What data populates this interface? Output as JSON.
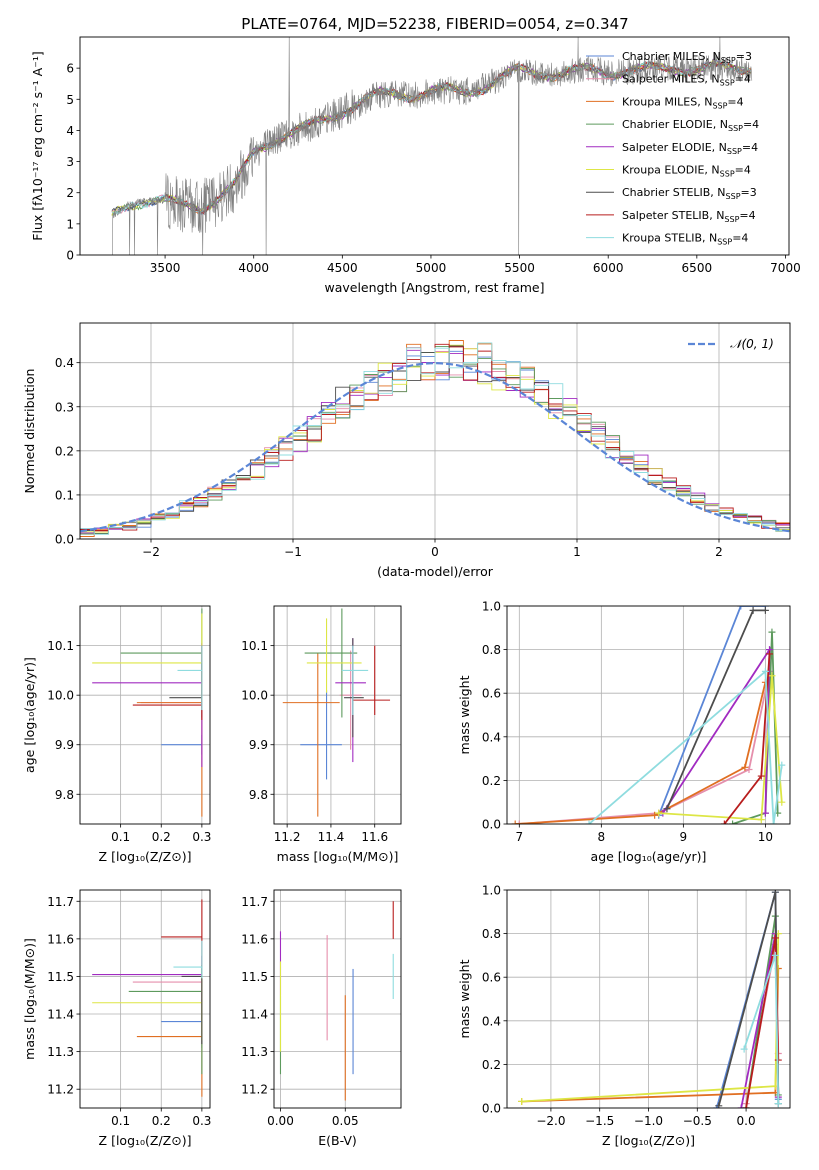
{
  "figure_title": "PLATE=0764, MJD=52238, FIBERID=0054, z=0.347",
  "colors": {
    "Chabrier MILES": "#5b86d6",
    "Salpeter MILES": "#e58fac",
    "Kroupa MILES": "#e06f22",
    "Chabrier ELODIE": "#5d9a5d",
    "Salpeter ELODIE": "#a12bc1",
    "Kroupa ELODIE": "#dde645",
    "Chabrier STELIB": "#4d4d4d",
    "Salpeter STELIB": "#b81d1d",
    "Kroupa STELIB": "#8fdcdf",
    "data": "#808080",
    "normal": "#5b86d6"
  },
  "chart_data": [
    {
      "id": "spectrum",
      "type": "line",
      "xlabel": "wavelength [Angstrom, rest frame]",
      "ylabel": "Flux [fλ10⁻¹⁷ erg cm⁻² s⁻¹ A⁻¹]",
      "xlim": [
        3020,
        7020
      ],
      "ylim": [
        0,
        7
      ],
      "xticks": [
        "3500",
        "4000",
        "4500",
        "5000",
        "5500",
        "6000",
        "6500",
        "7000"
      ],
      "yticks": [
        "0",
        "1",
        "2",
        "3",
        "4",
        "5",
        "6"
      ],
      "grid": false,
      "legend": "upper right",
      "legend_entries": [
        {
          "series": "Chabrier MILES",
          "text": "Chabrier MILES, N",
          "sub": "SSP",
          "suffix": "=3"
        },
        {
          "series": "Salpeter MILES",
          "text": "Salpeter MILES, N",
          "sub": "SSP",
          "suffix": "=4"
        },
        {
          "series": "Kroupa MILES",
          "text": "Kroupa MILES, N",
          "sub": "SSP",
          "suffix": "=4"
        },
        {
          "series": "Chabrier ELODIE",
          "text": "Chabrier ELODIE, N",
          "sub": "SSP",
          "suffix": "=4"
        },
        {
          "series": "Salpeter ELODIE",
          "text": "Salpeter ELODIE, N",
          "sub": "SSP",
          "suffix": "=4"
        },
        {
          "series": "Kroupa ELODIE",
          "text": "Kroupa ELODIE, N",
          "sub": "SSP",
          "suffix": "=4"
        },
        {
          "series": "Chabrier STELIB",
          "text": "Chabrier STELIB, N",
          "sub": "SSP",
          "suffix": "=3"
        },
        {
          "series": "Salpeter STELIB",
          "text": "Salpeter STELIB, N",
          "sub": "SSP",
          "suffix": "=4"
        },
        {
          "series": "Kroupa STELIB",
          "text": "Kroupa STELIB, N",
          "sub": "SSP",
          "suffix": "=4"
        }
      ],
      "continuum": [
        [
          3200,
          1.25
        ],
        [
          3300,
          1.65
        ],
        [
          3400,
          1.75
        ],
        [
          3500,
          1.75
        ],
        [
          3600,
          1.6
        ],
        [
          3700,
          1.5
        ],
        [
          3800,
          1.85
        ],
        [
          3900,
          2.3
        ],
        [
          4000,
          3.3
        ],
        [
          4100,
          3.65
        ],
        [
          4200,
          3.9
        ],
        [
          4300,
          4.1
        ],
        [
          4400,
          4.35
        ],
        [
          4500,
          4.6
        ],
        [
          4600,
          4.9
        ],
        [
          4700,
          5.15
        ],
        [
          4800,
          5.2
        ],
        [
          4900,
          5.1
        ],
        [
          5000,
          5.25
        ],
        [
          5100,
          5.3
        ],
        [
          5200,
          5.25
        ],
        [
          5300,
          5.4
        ],
        [
          5400,
          5.7
        ],
        [
          5500,
          5.95
        ],
        [
          5600,
          5.85
        ],
        [
          5700,
          5.8
        ],
        [
          5800,
          5.9
        ],
        [
          5900,
          5.95
        ],
        [
          6000,
          5.85
        ],
        [
          6100,
          5.9
        ],
        [
          6200,
          5.95
        ],
        [
          6300,
          6.0
        ],
        [
          6400,
          6.0
        ],
        [
          6500,
          5.95
        ],
        [
          6600,
          6.05
        ],
        [
          6700,
          6.0
        ],
        [
          6800,
          6.0
        ]
      ]
    },
    {
      "id": "residuals",
      "type": "histogram",
      "xlabel": "(data-model)/error",
      "ylabel": "Normed distribution",
      "xlim": [
        -2.5,
        2.5
      ],
      "ylim": [
        0,
        0.49
      ],
      "xticks": [
        "−2",
        "−1",
        "0",
        "1",
        "2"
      ],
      "yticks": [
        "0.0",
        "0.1",
        "0.2",
        "0.3",
        "0.4"
      ],
      "grid": true,
      "legend": "upper right",
      "legend_label": "𝒩(0, 1)",
      "bin_width": 0.1
    },
    {
      "id": "age-vs-Z",
      "type": "errorbar",
      "xlabel": "Z [log₁₀(Z/Z⊙)]",
      "ylabel": "age  [log₁₀(age/yr)]",
      "xlim": [
        0.0,
        0.32
      ],
      "ylim": [
        9.74,
        10.18
      ],
      "xticks": [
        "0.1",
        "0.2",
        "0.3"
      ],
      "yticks": [
        "9.8",
        "9.9",
        "10.0",
        "10.1"
      ],
      "grid": true,
      "points": [
        {
          "s": "Chabrier MILES",
          "x": 0.3,
          "xe": [
            0.1,
            0.0
          ],
          "y": 9.9,
          "ye": [
            0.02,
            0.02
          ]
        },
        {
          "s": "Salpeter MILES",
          "x": 0.3,
          "xe": [
            0.15,
            0.0
          ],
          "y": 9.985,
          "ye": [
            0.01,
            0.01
          ]
        },
        {
          "s": "Kroupa MILES",
          "x": 0.3,
          "xe": [
            0.16,
            0.0
          ],
          "y": 9.985,
          "ye": [
            0.23,
            0.1
          ]
        },
        {
          "s": "Chabrier ELODIE",
          "x": 0.3,
          "xe": [
            0.2,
            0.0
          ],
          "y": 10.085,
          "ye": [
            0.13,
            0.09
          ]
        },
        {
          "s": "Salpeter ELODIE",
          "x": 0.3,
          "xe": [
            0.27,
            0.0
          ],
          "y": 10.025,
          "ye": [
            0.17,
            0.08
          ]
        },
        {
          "s": "Kroupa ELODIE",
          "x": 0.3,
          "xe": [
            0.27,
            0.0
          ],
          "y": 10.065,
          "ye": [
            0.08,
            0.1
          ]
        },
        {
          "s": "Chabrier STELIB",
          "x": 0.3,
          "xe": [
            0.08,
            0.0
          ],
          "y": 9.995,
          "ye": [
            0.02,
            0.07
          ]
        },
        {
          "s": "Salpeter STELIB",
          "x": 0.3,
          "xe": [
            0.17,
            0.0
          ],
          "y": 9.98,
          "ye": [
            0.03,
            0.12
          ]
        },
        {
          "s": "Kroupa STELIB",
          "x": 0.3,
          "xe": [
            0.06,
            0.0
          ],
          "y": 10.05,
          "ye": [
            0.08,
            0.05
          ]
        }
      ]
    },
    {
      "id": "age-vs-mass",
      "type": "errorbar",
      "xlabel": "mass [log₁₀(M/M⊙)]",
      "ylabel": "",
      "xlim": [
        11.14,
        11.72
      ],
      "ylim": [
        9.74,
        10.18
      ],
      "xticks": [
        "11.2",
        "11.4",
        "11.6"
      ],
      "yticks": [
        "9.8",
        "9.9",
        "10.0",
        "10.1"
      ],
      "grid": true,
      "points": [
        {
          "s": "Chabrier MILES",
          "x": 11.38,
          "xe": [
            0.12,
            0.07
          ],
          "y": 9.9,
          "ye": [
            0.07,
            0.11
          ]
        },
        {
          "s": "Salpeter MILES",
          "x": 11.49,
          "xe": [
            0.05,
            0.05
          ],
          "y": 10.0,
          "ye": [
            0.11,
            0.09
          ]
        },
        {
          "s": "Kroupa MILES",
          "x": 11.34,
          "xe": [
            0.16,
            0.1
          ],
          "y": 9.985,
          "ye": [
            0.23,
            0.1
          ]
        },
        {
          "s": "Chabrier ELODIE",
          "x": 11.45,
          "xe": [
            0.17,
            0.07
          ],
          "y": 10.085,
          "ye": [
            0.13,
            0.09
          ]
        },
        {
          "s": "Salpeter ELODIE",
          "x": 11.5,
          "xe": [
            0.08,
            0.06
          ],
          "y": 10.025,
          "ye": [
            0.16,
            0.09
          ]
        },
        {
          "s": "Kroupa ELODIE",
          "x": 11.38,
          "xe": [
            0.09,
            0.16
          ],
          "y": 10.065,
          "ye": [
            0.06,
            0.09
          ]
        },
        {
          "s": "Chabrier STELIB",
          "x": 11.5,
          "xe": [
            0.04,
            0.05
          ],
          "y": 9.995,
          "ye": [
            0.08,
            0.12
          ]
        },
        {
          "s": "Salpeter STELIB",
          "x": 11.6,
          "xe": [
            0.1,
            0.07
          ],
          "y": 9.99,
          "ye": [
            0.03,
            0.11
          ]
        },
        {
          "s": "Kroupa STELIB",
          "x": 11.5,
          "xe": [
            0.05,
            0.07
          ],
          "y": 10.05,
          "ye": [
            0.09,
            0.05
          ]
        }
      ]
    },
    {
      "id": "weight-vs-age",
      "type": "line",
      "xlabel": "age  [log₁₀(age/yr)]",
      "ylabel": "mass weight",
      "xlim": [
        6.85,
        10.3
      ],
      "ylim": [
        0,
        1
      ],
      "xticks": [
        "7",
        "8",
        "9",
        "10"
      ],
      "yticks": [
        "0.0",
        "0.2",
        "0.4",
        "0.6",
        "0.8",
        "1.0"
      ],
      "grid": true,
      "series": [
        {
          "s": "Chabrier MILES",
          "x": [
            8.7,
            9.7,
            10.0
          ],
          "y": [
            0.04,
            1.0,
            1.0
          ]
        },
        {
          "s": "Salpeter MILES",
          "x": [
            7.0,
            8.7,
            9.8,
            10.05
          ],
          "y": [
            0.0,
            0.05,
            0.25,
            0.7
          ]
        },
        {
          "s": "Kroupa MILES",
          "x": [
            6.95,
            8.65,
            9.75,
            10.0
          ],
          "y": [
            0.0,
            0.04,
            0.26,
            0.65
          ]
        },
        {
          "s": "Chabrier ELODIE",
          "x": [
            9.6,
            10.0,
            10.08,
            10.15
          ],
          "y": [
            0.0,
            0.05,
            0.88,
            0.05
          ]
        },
        {
          "s": "Salpeter ELODIE",
          "x": [
            8.75,
            10.05,
            10.0
          ],
          "y": [
            0.05,
            0.8,
            0.05
          ]
        },
        {
          "s": "Kroupa ELODIE",
          "x": [
            8.7,
            9.95,
            10.08,
            10.2
          ],
          "y": [
            0.05,
            0.02,
            0.68,
            0.1
          ]
        },
        {
          "s": "Chabrier STELIB",
          "x": [
            8.8,
            9.85,
            10.0
          ],
          "y": [
            0.07,
            0.98,
            0.98
          ]
        },
        {
          "s": "Salpeter STELIB",
          "x": [
            9.5,
            9.95,
            10.05
          ],
          "y": [
            0.0,
            0.22,
            0.78
          ]
        },
        {
          "s": "Kroupa STELIB",
          "x": [
            7.85,
            10.0,
            10.1,
            10.2
          ],
          "y": [
            0.0,
            0.7,
            0.0,
            0.27
          ]
        }
      ]
    },
    {
      "id": "mass-vs-Z",
      "type": "errorbar",
      "xlabel": "Z [log₁₀(Z/Z⊙)]",
      "ylabel": "mass [log₁₀(M/M⊙)]",
      "xlim": [
        0.0,
        0.32
      ],
      "ylim": [
        11.15,
        11.73
      ],
      "xticks": [
        "0.1",
        "0.2",
        "0.3"
      ],
      "yticks": [
        "11.2",
        "11.3",
        "11.4",
        "11.5",
        "11.6",
        "11.7"
      ],
      "grid": true,
      "points": [
        {
          "s": "Chabrier MILES",
          "x": 0.3,
          "xe": [
            0.1,
            0.0
          ],
          "y": 11.38,
          "ye": [
            0.07,
            0.08
          ]
        },
        {
          "s": "Salpeter MILES",
          "x": 0.3,
          "xe": [
            0.17,
            0.0
          ],
          "y": 11.485,
          "ye": [
            0.04,
            0.04
          ]
        },
        {
          "s": "Kroupa MILES",
          "x": 0.3,
          "xe": [
            0.16,
            0.0
          ],
          "y": 11.34,
          "ye": [
            0.16,
            0.1
          ]
        },
        {
          "s": "Chabrier ELODIE",
          "x": 0.3,
          "xe": [
            0.18,
            0.0
          ],
          "y": 11.46,
          "ye": [
            0.22,
            0.06
          ]
        },
        {
          "s": "Salpeter ELODIE",
          "x": 0.3,
          "xe": [
            0.27,
            0.0
          ],
          "y": 11.505,
          "ye": [
            0.08,
            0.05
          ]
        },
        {
          "s": "Kroupa ELODIE",
          "x": 0.3,
          "xe": [
            0.27,
            0.0
          ],
          "y": 11.43,
          "ye": [
            0.1,
            0.1
          ]
        },
        {
          "s": "Chabrier STELIB",
          "x": 0.3,
          "xe": [
            0.05,
            0.0
          ],
          "y": 11.5,
          "ye": [
            0.18,
            0.03
          ]
        },
        {
          "s": "Salpeter STELIB",
          "x": 0.3,
          "xe": [
            0.1,
            0.0
          ],
          "y": 11.605,
          "ye": [
            0.08,
            0.1
          ]
        },
        {
          "s": "Kroupa STELIB",
          "x": 0.3,
          "xe": [
            0.07,
            0.0
          ],
          "y": 11.525,
          "ye": [
            0.03,
            0.07
          ]
        }
      ]
    },
    {
      "id": "mass-vs-ebv",
      "type": "errorbar",
      "xlabel": "E(B-V)",
      "ylabel": "",
      "xlim": [
        -0.005,
        0.093
      ],
      "ylim": [
        11.15,
        11.73
      ],
      "xticks": [
        "0.00",
        "0.05"
      ],
      "yticks": [
        "11.2",
        "11.3",
        "11.4",
        "11.5",
        "11.6",
        "11.7"
      ],
      "grid": true,
      "points": [
        {
          "s": "Chabrier MILES",
          "x": 0.056,
          "xe": [
            0,
            0
          ],
          "y": 11.38,
          "ye": [
            0.14,
            0.14
          ]
        },
        {
          "s": "Salpeter MILES",
          "x": 0.036,
          "xe": [
            0,
            0
          ],
          "y": 11.47,
          "ye": [
            0.14,
            0.14
          ]
        },
        {
          "s": "Kroupa MILES",
          "x": 0.05,
          "xe": [
            0,
            0
          ],
          "y": 11.31,
          "ye": [
            0.14,
            0.14
          ]
        },
        {
          "s": "Chabrier ELODIE",
          "x": 0.0,
          "xe": [
            0,
            0
          ],
          "y": 11.35,
          "ye": [
            0.11,
            0.1
          ]
        },
        {
          "s": "Salpeter ELODIE",
          "x": 0.0,
          "xe": [
            0,
            0
          ],
          "y": 11.51,
          "ye": [
            0.06,
            0.11
          ]
        },
        {
          "s": "Kroupa ELODIE",
          "x": 0.0,
          "xe": [
            0,
            0
          ],
          "y": 11.42,
          "ye": [
            0.12,
            0.12
          ]
        },
        {
          "s": "Salpeter STELIB",
          "x": 0.087,
          "xe": [
            0,
            0
          ],
          "y": 11.65,
          "ye": [
            0.05,
            0.05
          ]
        },
        {
          "s": "Kroupa STELIB",
          "x": 0.087,
          "xe": [
            0,
            0
          ],
          "y": 11.5,
          "ye": [
            0.06,
            0.06
          ]
        }
      ]
    },
    {
      "id": "weight-vs-Z",
      "type": "line",
      "xlabel": "Z [log₁₀(Z/Z⊙)]",
      "ylabel": "mass weight",
      "xlim": [
        -2.45,
        0.45
      ],
      "ylim": [
        0,
        1
      ],
      "xticks": [
        "−2.0",
        "−1.5",
        "−1.0",
        "−0.5",
        "0.0"
      ],
      "yticks": [
        "0.0",
        "0.2",
        "0.4",
        "0.6",
        "0.8",
        "1.0"
      ],
      "grid": true,
      "series": [
        {
          "s": "Chabrier MILES",
          "x": [
            -0.3,
            0.3,
            0.33
          ],
          "y": [
            0.0,
            0.99,
            0.04
          ]
        },
        {
          "s": "Salpeter MILES",
          "x": [
            0.0,
            0.3,
            0.33
          ],
          "y": [
            0.02,
            0.75,
            0.25
          ]
        },
        {
          "s": "Kroupa MILES",
          "x": [
            -2.3,
            0.3,
            0.33
          ],
          "y": [
            0.03,
            0.07,
            0.64
          ]
        },
        {
          "s": "Chabrier ELODIE",
          "x": [
            0.0,
            0.3,
            0.33
          ],
          "y": [
            0.0,
            0.88,
            0.06
          ]
        },
        {
          "s": "Salpeter ELODIE",
          "x": [
            -0.05,
            0.3,
            0.33
          ],
          "y": [
            0.0,
            0.8,
            0.05
          ]
        },
        {
          "s": "Kroupa ELODIE",
          "x": [
            -2.3,
            0.3,
            0.33
          ],
          "y": [
            0.03,
            0.1,
            0.8
          ]
        },
        {
          "s": "Chabrier STELIB",
          "x": [
            -0.28,
            0.3,
            0.33
          ],
          "y": [
            0.01,
            0.99,
            0.02
          ]
        },
        {
          "s": "Salpeter STELIB",
          "x": [
            0.0,
            0.3,
            0.33
          ],
          "y": [
            0.0,
            0.78,
            0.22
          ]
        },
        {
          "s": "Kroupa STELIB",
          "x": [
            -0.02,
            0.3,
            0.33
          ],
          "y": [
            0.27,
            0.7,
            0.02
          ]
        }
      ]
    }
  ]
}
